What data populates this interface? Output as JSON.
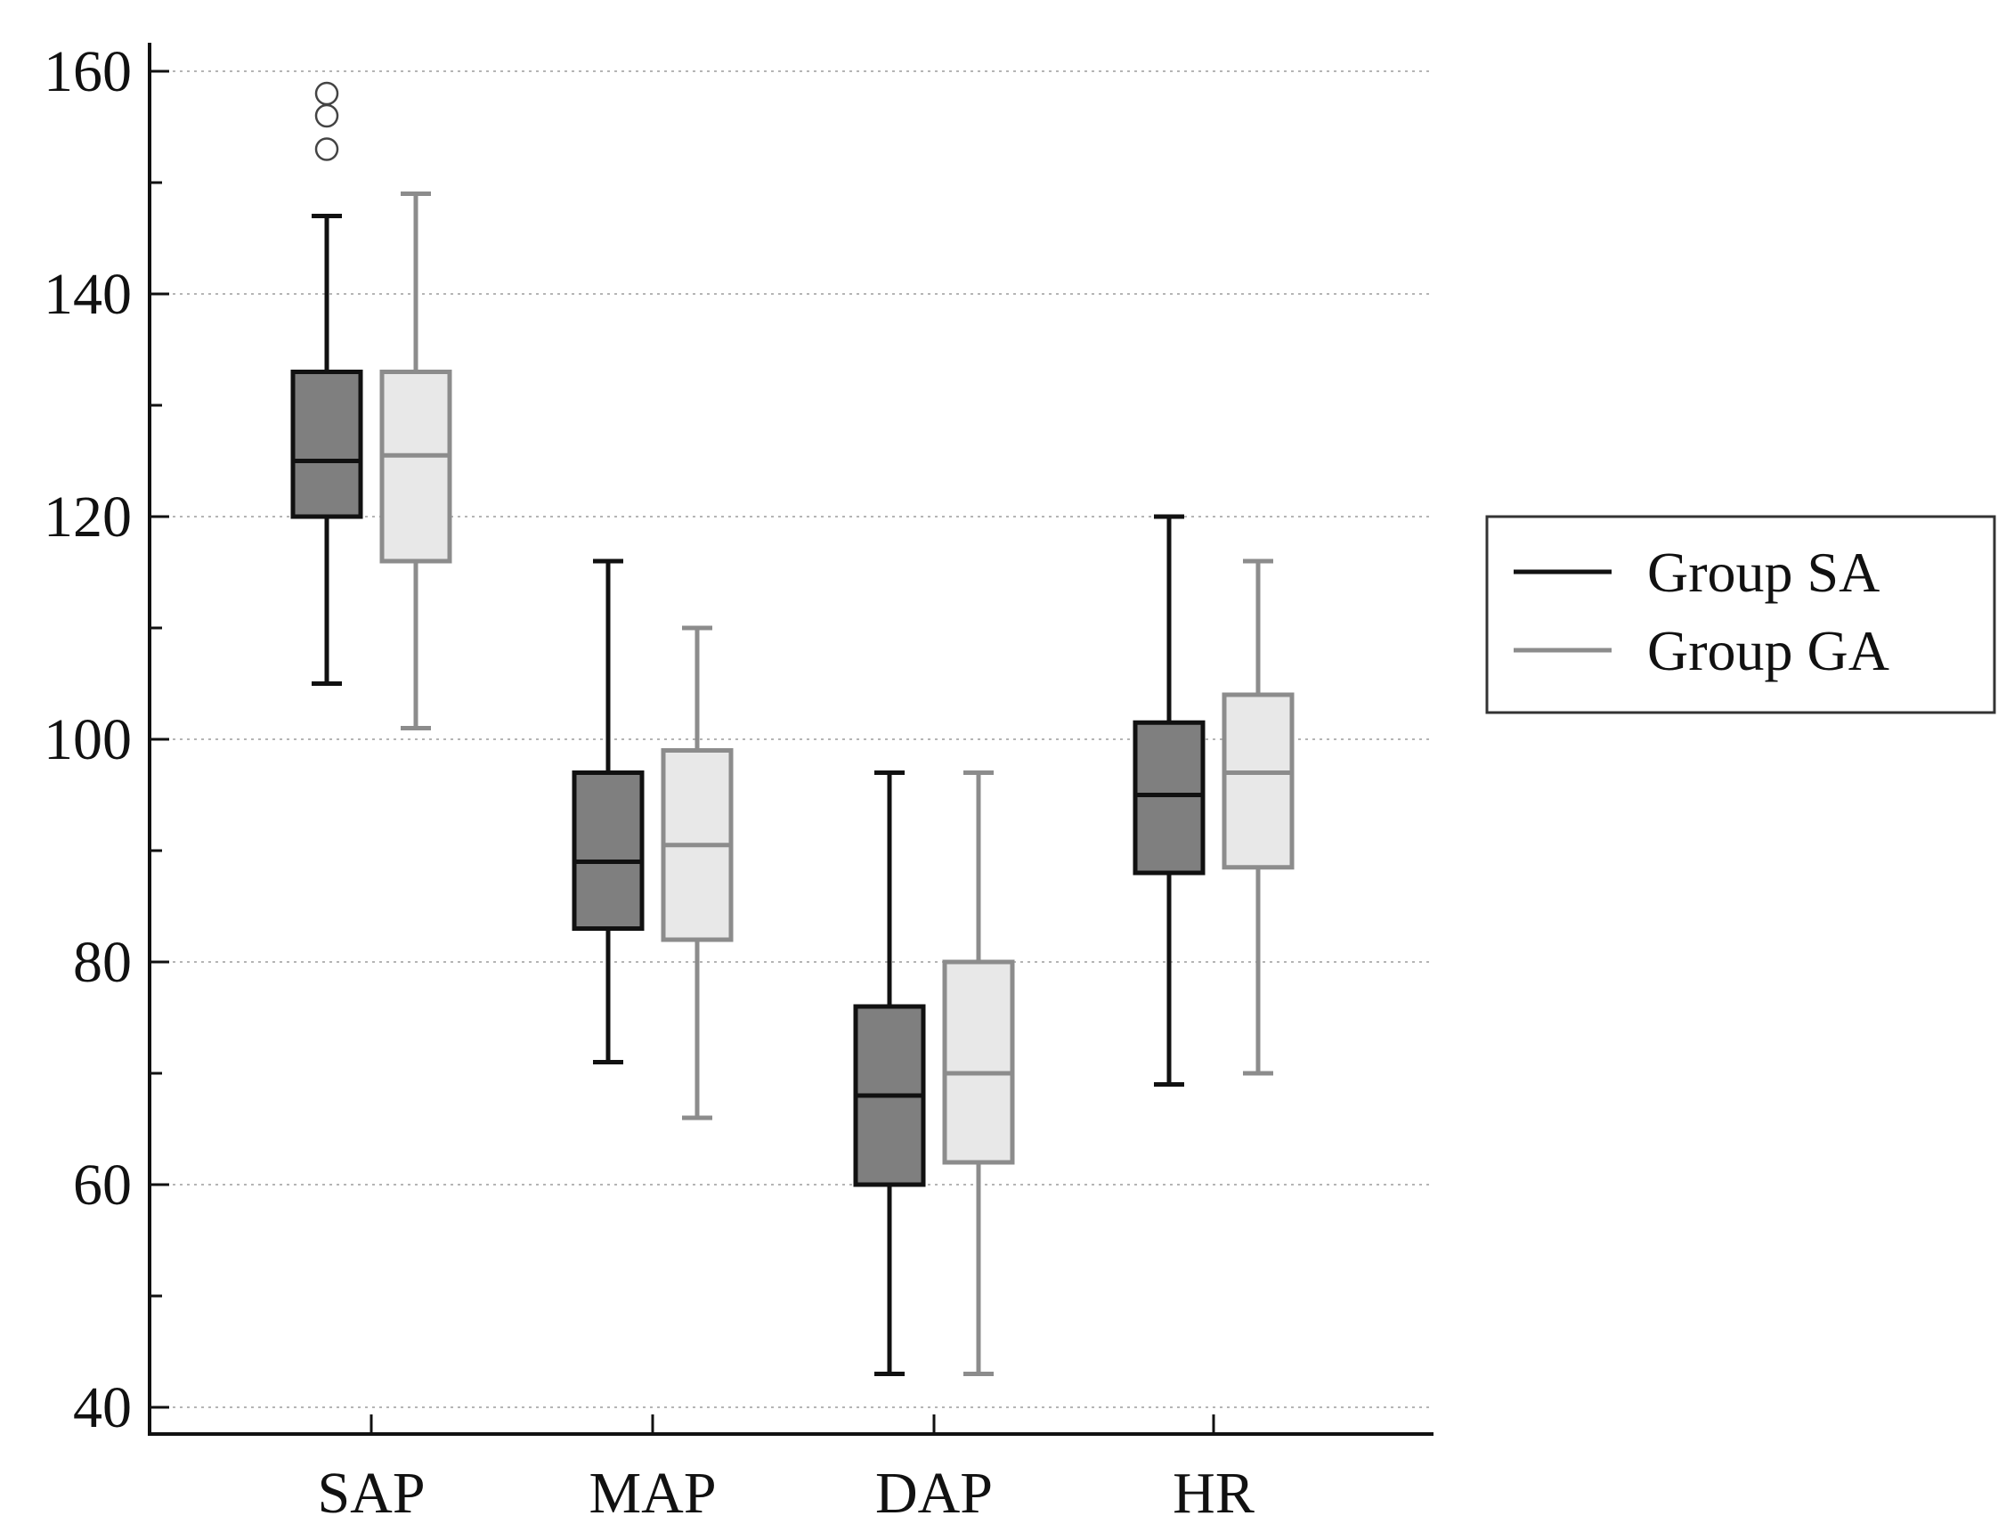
{
  "chart_data": {
    "type": "box",
    "title": "",
    "xlabel": "",
    "ylabel": "",
    "ylim": [
      40,
      162
    ],
    "yticks": [
      40,
      60,
      80,
      100,
      120,
      140,
      160
    ],
    "grid": true,
    "categories": [
      "SAP",
      "MAP",
      "DAP",
      "HR"
    ],
    "legend": {
      "placement": "right",
      "entries": [
        "Group SA",
        "Group GA"
      ]
    },
    "series": [
      {
        "name": "Group SA",
        "line_color": "#111111",
        "fill_color": "#7f7f7f",
        "boxes": [
          {
            "category": "SAP",
            "min": 105,
            "q1": 120,
            "median": 125,
            "q3": 133,
            "max": 147,
            "outliers": [
              153,
              156,
              158
            ]
          },
          {
            "category": "MAP",
            "min": 71,
            "q1": 83,
            "median": 89,
            "q3": 97,
            "max": 116,
            "outliers": []
          },
          {
            "category": "DAP",
            "min": 43,
            "q1": 60,
            "median": 68,
            "q3": 76,
            "max": 97,
            "outliers": []
          },
          {
            "category": "HR",
            "min": 69,
            "q1": 88,
            "median": 95,
            "q3": 101.5,
            "max": 120,
            "outliers": []
          }
        ]
      },
      {
        "name": "Group GA",
        "line_color": "#8c8c8c",
        "fill_color": "#e8e8e8",
        "boxes": [
          {
            "category": "SAP",
            "min": 101,
            "q1": 116,
            "median": 125.5,
            "q3": 133,
            "max": 149,
            "outliers": []
          },
          {
            "category": "MAP",
            "min": 66,
            "q1": 82,
            "median": 90.5,
            "q3": 99,
            "max": 110,
            "outliers": []
          },
          {
            "category": "DAP",
            "min": 43,
            "q1": 62,
            "median": 70,
            "q3": 80,
            "max": 97,
            "outliers": []
          },
          {
            "category": "HR",
            "min": 70,
            "q1": 88.5,
            "median": 97,
            "q3": 104,
            "max": 116,
            "outliers": []
          }
        ]
      }
    ]
  }
}
